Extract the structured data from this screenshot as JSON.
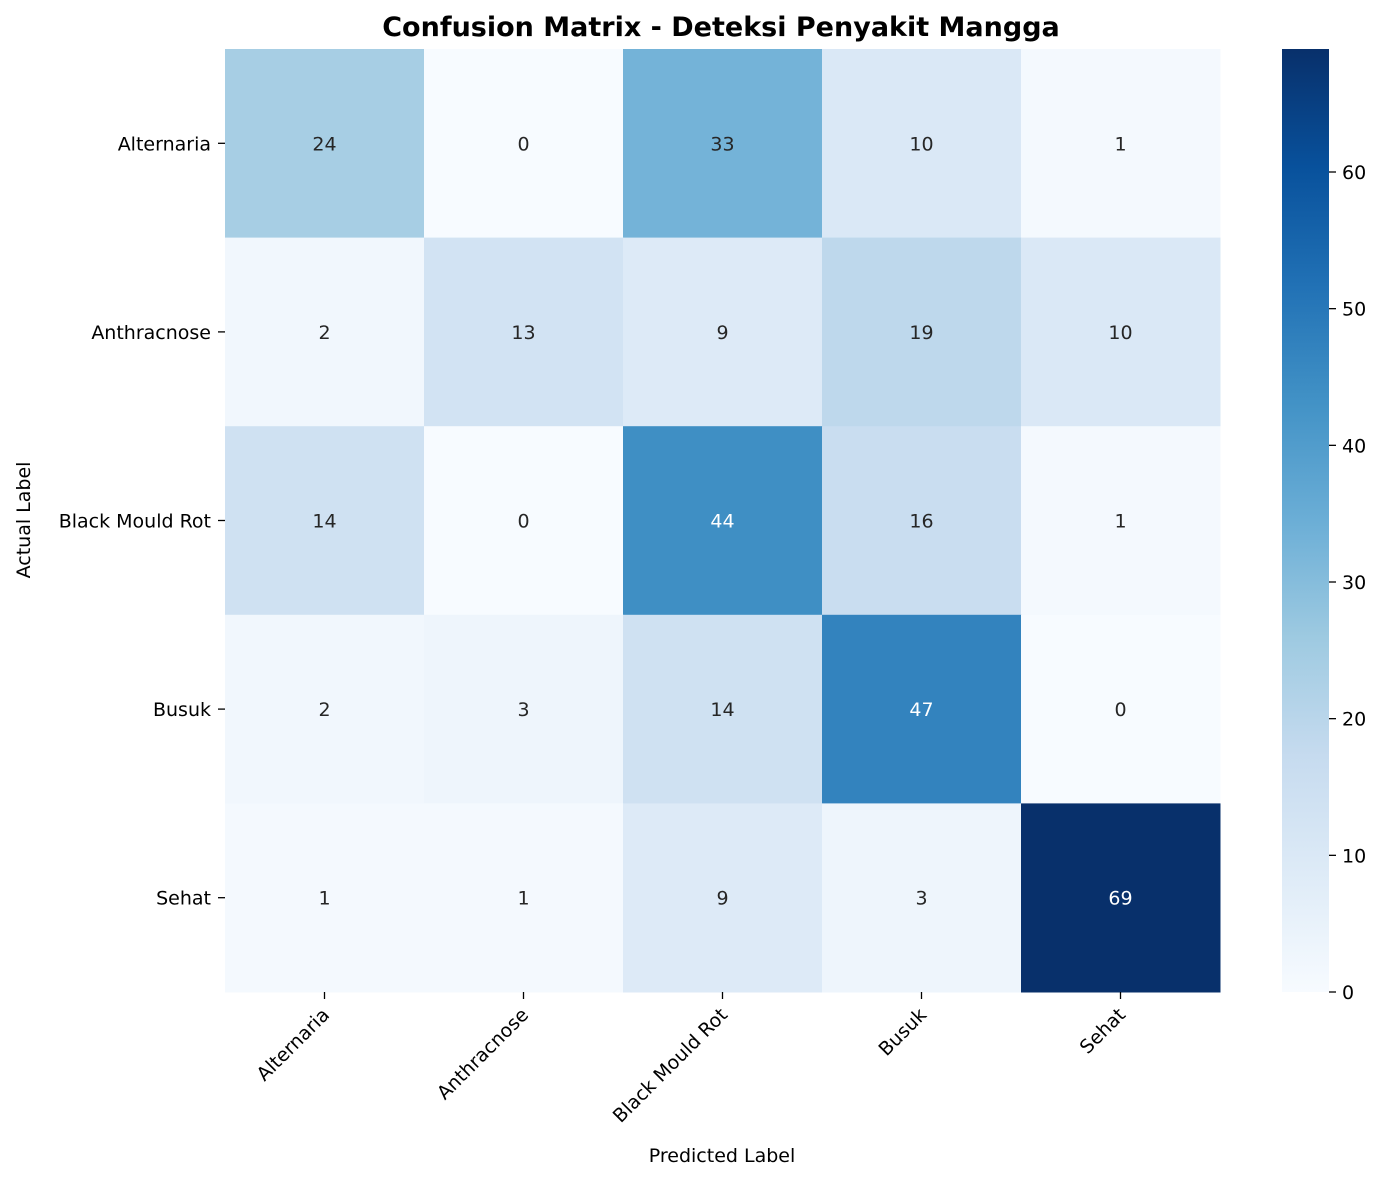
{
  "chart_data": {
    "type": "heatmap",
    "title": "Confusion Matrix - Deteksi Penyakit Mangga",
    "xlabel": "Predicted Label",
    "ylabel": "Actual Label",
    "x_categories": [
      "Alternaria",
      "Anthracnose",
      "Black Mould Rot",
      "Busuk",
      "Sehat"
    ],
    "y_categories": [
      "Alternaria",
      "Anthracnose",
      "Black Mould Rot",
      "Busuk",
      "Sehat"
    ],
    "values": [
      [
        24,
        0,
        33,
        10,
        1
      ],
      [
        2,
        13,
        9,
        19,
        10
      ],
      [
        14,
        0,
        44,
        16,
        1
      ],
      [
        2,
        3,
        14,
        47,
        0
      ],
      [
        1,
        1,
        9,
        3,
        69
      ]
    ],
    "colorbar": {
      "colormap": "Blues",
      "range": [
        0,
        69
      ],
      "ticks": [
        "0",
        "10",
        "20",
        "30",
        "40",
        "50",
        "60"
      ]
    }
  }
}
